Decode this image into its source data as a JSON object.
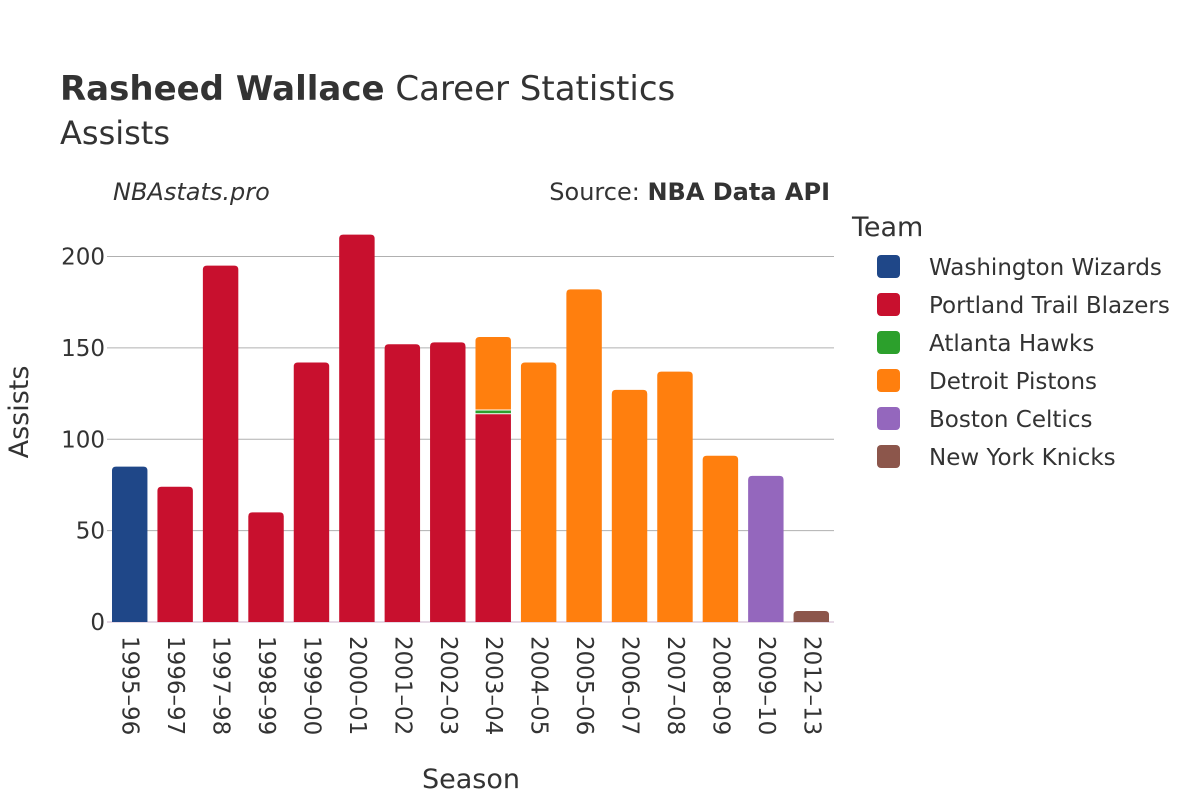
{
  "header": {
    "title_bold": "Rasheed Wallace",
    "title_rest": " Career Statistics",
    "subtitle": "Assists",
    "watermark": "NBAstats.pro",
    "source_prefix": "Source: ",
    "source_name": "NBA Data API"
  },
  "legend": {
    "title": "Team"
  },
  "colors": {
    "Washington Wizards": "#1f4788",
    "Portland Trail Blazers": "#c8102e",
    "Atlanta Hawks": "#2ca02c",
    "Detroit Pistons": "#ff7f0e",
    "Boston Celtics": "#9467bd",
    "New York Knicks": "#8c564b",
    "grid": "#b0b0b0",
    "text": "#333333"
  },
  "chart_data": {
    "type": "bar",
    "stacked": true,
    "title": "Rasheed Wallace Career Statistics",
    "subtitle": "Assists",
    "xlabel": "Season",
    "ylabel": "Assists",
    "ylim": [
      0,
      220
    ],
    "yticks": [
      0,
      50,
      100,
      150,
      200
    ],
    "grid": true,
    "legend_position": "right",
    "categories": [
      "1995–96",
      "1996–97",
      "1997–98",
      "1998–99",
      "1999–00",
      "2000–01",
      "2001–02",
      "2002–03",
      "2003–04",
      "2004–05",
      "2005–06",
      "2006–07",
      "2007–08",
      "2008–09",
      "2009–10",
      "2012–13"
    ],
    "series": [
      {
        "name": "Washington Wizards",
        "values": [
          85,
          0,
          0,
          0,
          0,
          0,
          0,
          0,
          0,
          0,
          0,
          0,
          0,
          0,
          0,
          0
        ]
      },
      {
        "name": "Portland Trail Blazers",
        "values": [
          0,
          74,
          195,
          60,
          142,
          212,
          152,
          153,
          114,
          0,
          0,
          0,
          0,
          0,
          0,
          0
        ]
      },
      {
        "name": "Atlanta Hawks",
        "values": [
          0,
          0,
          0,
          0,
          0,
          0,
          0,
          0,
          2,
          0,
          0,
          0,
          0,
          0,
          0,
          0
        ]
      },
      {
        "name": "Detroit Pistons",
        "values": [
          0,
          0,
          0,
          0,
          0,
          0,
          0,
          0,
          40,
          142,
          182,
          127,
          137,
          91,
          0,
          0
        ]
      },
      {
        "name": "Boston Celtics",
        "values": [
          0,
          0,
          0,
          0,
          0,
          0,
          0,
          0,
          0,
          0,
          0,
          0,
          0,
          0,
          80,
          0
        ]
      },
      {
        "name": "New York Knicks",
        "values": [
          0,
          0,
          0,
          0,
          0,
          0,
          0,
          0,
          0,
          0,
          0,
          0,
          0,
          0,
          0,
          6
        ]
      }
    ]
  }
}
